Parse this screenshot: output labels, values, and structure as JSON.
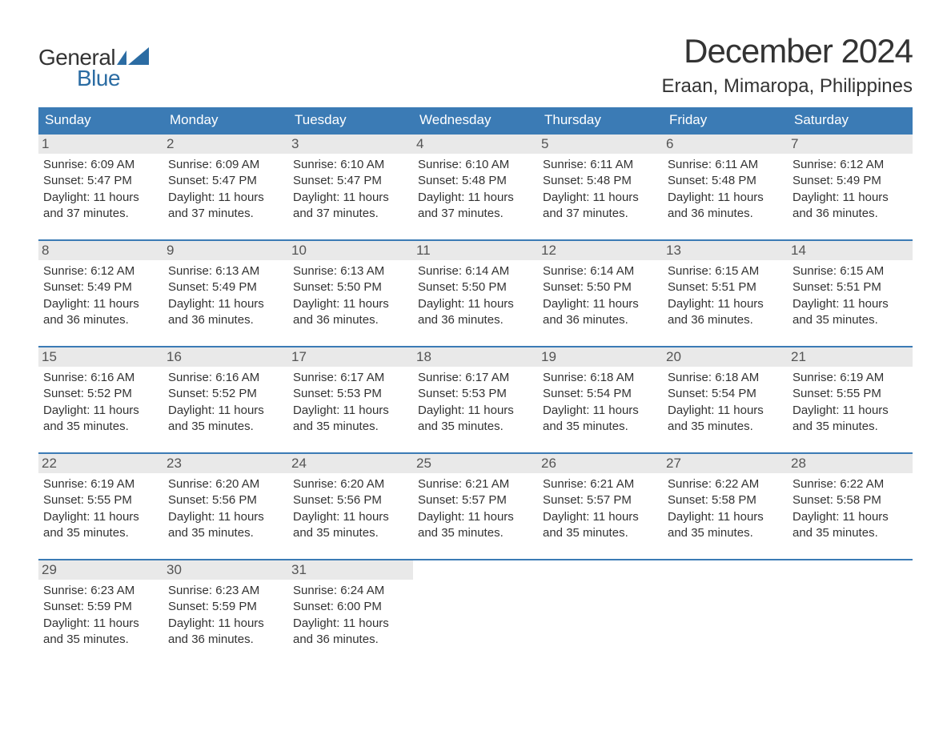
{
  "logo": {
    "text_general": "General",
    "text_blue": "Blue",
    "flag_color": "#2b6ca3"
  },
  "title": "December 2024",
  "location": "Eraan, Mimaropa, Philippines",
  "colors": {
    "header_bg": "#3b7bb5",
    "header_text": "#ffffff",
    "daynum_bg": "#e9e9e9",
    "daynum_text": "#555555",
    "body_text": "#333333",
    "week_border": "#3b7bb5",
    "page_bg": "#ffffff",
    "brand_blue": "#2b6ca3"
  },
  "typography": {
    "title_fontsize": 42,
    "location_fontsize": 24,
    "weekday_fontsize": 17,
    "daynum_fontsize": 17,
    "dayinfo_fontsize": 15,
    "font_family": "Arial"
  },
  "weekdays": [
    "Sunday",
    "Monday",
    "Tuesday",
    "Wednesday",
    "Thursday",
    "Friday",
    "Saturday"
  ],
  "labels": {
    "sunrise": "Sunrise:",
    "sunset": "Sunset:",
    "daylight": "Daylight:"
  },
  "days": [
    {
      "num": "1",
      "sunrise": "6:09 AM",
      "sunset": "5:47 PM",
      "daylight": "11 hours and 37 minutes."
    },
    {
      "num": "2",
      "sunrise": "6:09 AM",
      "sunset": "5:47 PM",
      "daylight": "11 hours and 37 minutes."
    },
    {
      "num": "3",
      "sunrise": "6:10 AM",
      "sunset": "5:47 PM",
      "daylight": "11 hours and 37 minutes."
    },
    {
      "num": "4",
      "sunrise": "6:10 AM",
      "sunset": "5:48 PM",
      "daylight": "11 hours and 37 minutes."
    },
    {
      "num": "5",
      "sunrise": "6:11 AM",
      "sunset": "5:48 PM",
      "daylight": "11 hours and 37 minutes."
    },
    {
      "num": "6",
      "sunrise": "6:11 AM",
      "sunset": "5:48 PM",
      "daylight": "11 hours and 36 minutes."
    },
    {
      "num": "7",
      "sunrise": "6:12 AM",
      "sunset": "5:49 PM",
      "daylight": "11 hours and 36 minutes."
    },
    {
      "num": "8",
      "sunrise": "6:12 AM",
      "sunset": "5:49 PM",
      "daylight": "11 hours and 36 minutes."
    },
    {
      "num": "9",
      "sunrise": "6:13 AM",
      "sunset": "5:49 PM",
      "daylight": "11 hours and 36 minutes."
    },
    {
      "num": "10",
      "sunrise": "6:13 AM",
      "sunset": "5:50 PM",
      "daylight": "11 hours and 36 minutes."
    },
    {
      "num": "11",
      "sunrise": "6:14 AM",
      "sunset": "5:50 PM",
      "daylight": "11 hours and 36 minutes."
    },
    {
      "num": "12",
      "sunrise": "6:14 AM",
      "sunset": "5:50 PM",
      "daylight": "11 hours and 36 minutes."
    },
    {
      "num": "13",
      "sunrise": "6:15 AM",
      "sunset": "5:51 PM",
      "daylight": "11 hours and 36 minutes."
    },
    {
      "num": "14",
      "sunrise": "6:15 AM",
      "sunset": "5:51 PM",
      "daylight": "11 hours and 35 minutes."
    },
    {
      "num": "15",
      "sunrise": "6:16 AM",
      "sunset": "5:52 PM",
      "daylight": "11 hours and 35 minutes."
    },
    {
      "num": "16",
      "sunrise": "6:16 AM",
      "sunset": "5:52 PM",
      "daylight": "11 hours and 35 minutes."
    },
    {
      "num": "17",
      "sunrise": "6:17 AM",
      "sunset": "5:53 PM",
      "daylight": "11 hours and 35 minutes."
    },
    {
      "num": "18",
      "sunrise": "6:17 AM",
      "sunset": "5:53 PM",
      "daylight": "11 hours and 35 minutes."
    },
    {
      "num": "19",
      "sunrise": "6:18 AM",
      "sunset": "5:54 PM",
      "daylight": "11 hours and 35 minutes."
    },
    {
      "num": "20",
      "sunrise": "6:18 AM",
      "sunset": "5:54 PM",
      "daylight": "11 hours and 35 minutes."
    },
    {
      "num": "21",
      "sunrise": "6:19 AM",
      "sunset": "5:55 PM",
      "daylight": "11 hours and 35 minutes."
    },
    {
      "num": "22",
      "sunrise": "6:19 AM",
      "sunset": "5:55 PM",
      "daylight": "11 hours and 35 minutes."
    },
    {
      "num": "23",
      "sunrise": "6:20 AM",
      "sunset": "5:56 PM",
      "daylight": "11 hours and 35 minutes."
    },
    {
      "num": "24",
      "sunrise": "6:20 AM",
      "sunset": "5:56 PM",
      "daylight": "11 hours and 35 minutes."
    },
    {
      "num": "25",
      "sunrise": "6:21 AM",
      "sunset": "5:57 PM",
      "daylight": "11 hours and 35 minutes."
    },
    {
      "num": "26",
      "sunrise": "6:21 AM",
      "sunset": "5:57 PM",
      "daylight": "11 hours and 35 minutes."
    },
    {
      "num": "27",
      "sunrise": "6:22 AM",
      "sunset": "5:58 PM",
      "daylight": "11 hours and 35 minutes."
    },
    {
      "num": "28",
      "sunrise": "6:22 AM",
      "sunset": "5:58 PM",
      "daylight": "11 hours and 35 minutes."
    },
    {
      "num": "29",
      "sunrise": "6:23 AM",
      "sunset": "5:59 PM",
      "daylight": "11 hours and 35 minutes."
    },
    {
      "num": "30",
      "sunrise": "6:23 AM",
      "sunset": "5:59 PM",
      "daylight": "11 hours and 36 minutes."
    },
    {
      "num": "31",
      "sunrise": "6:24 AM",
      "sunset": "6:00 PM",
      "daylight": "11 hours and 36 minutes."
    }
  ]
}
